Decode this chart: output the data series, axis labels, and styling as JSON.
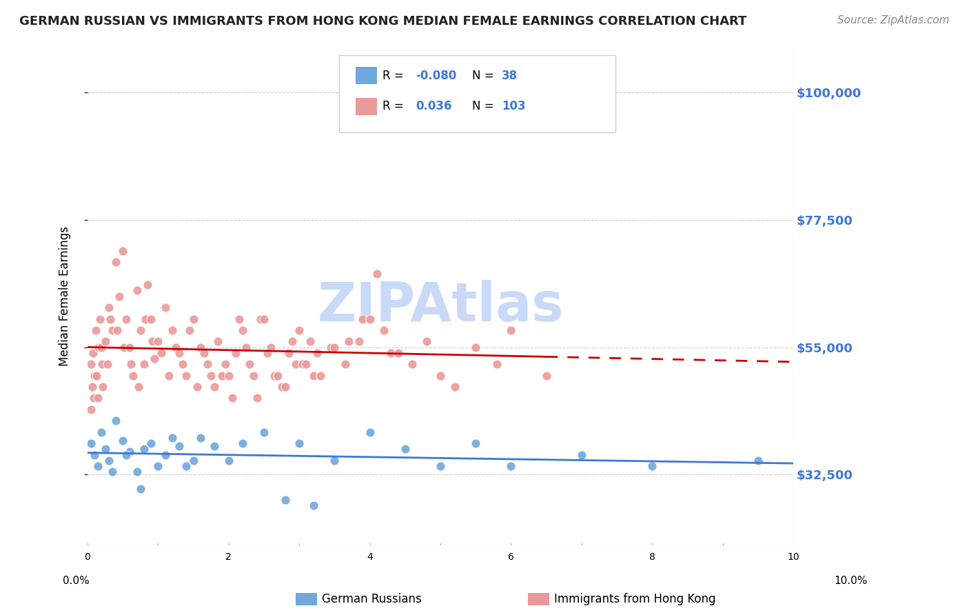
{
  "title": "GERMAN RUSSIAN VS IMMIGRANTS FROM HONG KONG MEDIAN FEMALE EARNINGS CORRELATION CHART",
  "source": "Source: ZipAtlas.com",
  "ylabel": "Median Female Earnings",
  "yticks": [
    32500,
    55000,
    77500,
    100000
  ],
  "ytick_labels": [
    "$32,500",
    "$55,000",
    "$77,500",
    "$100,000"
  ],
  "xmin": 0.0,
  "xmax": 10.0,
  "ymin": 20000,
  "ymax": 108000,
  "blue_R": -0.08,
  "blue_N": 38,
  "pink_R": 0.036,
  "pink_N": 103,
  "blue_color": "#6fa8dc",
  "pink_color": "#ea9999",
  "blue_line_color": "#3c78d8",
  "pink_line_color": "#cc0000",
  "watermark_color": "#c9daf8",
  "legend_label_blue": "German Russians",
  "legend_label_pink": "Immigrants from Hong Kong",
  "blue_scatter_x": [
    0.05,
    0.1,
    0.15,
    0.2,
    0.25,
    0.3,
    0.4,
    0.5,
    0.6,
    0.7,
    0.8,
    0.9,
    1.0,
    1.1,
    1.2,
    1.3,
    1.5,
    1.8,
    2.0,
    2.2,
    2.5,
    3.0,
    3.5,
    4.0,
    4.5,
    5.0,
    5.5,
    6.0,
    7.0,
    8.0,
    9.5,
    0.35,
    0.55,
    0.75,
    1.4,
    1.6,
    2.8,
    3.2
  ],
  "blue_scatter_y": [
    38000,
    36000,
    34000,
    40000,
    37000,
    35000,
    42000,
    38500,
    36500,
    33000,
    37000,
    38000,
    34000,
    36000,
    39000,
    37500,
    35000,
    37500,
    35000,
    38000,
    40000,
    38000,
    35000,
    40000,
    37000,
    34000,
    38000,
    34000,
    36000,
    34000,
    35000,
    33000,
    36000,
    30000,
    34000,
    39000,
    28000,
    27000
  ],
  "pink_scatter_x": [
    0.05,
    0.05,
    0.07,
    0.08,
    0.09,
    0.1,
    0.12,
    0.13,
    0.15,
    0.16,
    0.18,
    0.2,
    0.21,
    0.22,
    0.25,
    0.28,
    0.3,
    0.32,
    0.35,
    0.4,
    0.42,
    0.45,
    0.5,
    0.52,
    0.55,
    0.6,
    0.62,
    0.65,
    0.7,
    0.72,
    0.75,
    0.8,
    0.82,
    0.85,
    0.9,
    0.92,
    0.95,
    1.0,
    1.05,
    1.1,
    1.15,
    1.2,
    1.25,
    1.3,
    1.35,
    1.4,
    1.45,
    1.5,
    1.55,
    1.6,
    1.65,
    1.7,
    1.75,
    1.8,
    1.85,
    1.9,
    1.95,
    2.0,
    2.05,
    2.1,
    2.15,
    2.2,
    2.25,
    2.3,
    2.35,
    2.4,
    2.45,
    2.5,
    2.55,
    2.6,
    2.65,
    2.7,
    2.75,
    2.8,
    2.85,
    2.9,
    2.95,
    3.0,
    3.05,
    3.1,
    3.15,
    3.2,
    3.25,
    3.3,
    3.45,
    3.5,
    3.65,
    3.7,
    3.85,
    3.9,
    4.0,
    4.1,
    4.2,
    4.3,
    4.4,
    4.6,
    4.8,
    5.0,
    5.2,
    5.5,
    5.8,
    6.0,
    6.5
  ],
  "pink_scatter_y": [
    52000,
    44000,
    48000,
    54000,
    46000,
    50000,
    58000,
    50000,
    46000,
    55000,
    60000,
    55000,
    52000,
    48000,
    56000,
    52000,
    62000,
    60000,
    58000,
    70000,
    58000,
    64000,
    72000,
    55000,
    60000,
    55000,
    52000,
    50000,
    65000,
    48000,
    58000,
    52000,
    60000,
    66000,
    60000,
    56000,
    53000,
    56000,
    54000,
    62000,
    50000,
    58000,
    55000,
    54000,
    52000,
    50000,
    58000,
    60000,
    48000,
    55000,
    54000,
    52000,
    50000,
    48000,
    56000,
    50000,
    52000,
    50000,
    46000,
    54000,
    60000,
    58000,
    55000,
    52000,
    50000,
    46000,
    60000,
    60000,
    54000,
    55000,
    50000,
    50000,
    48000,
    48000,
    54000,
    56000,
    52000,
    58000,
    52000,
    52000,
    56000,
    50000,
    54000,
    50000,
    55000,
    55000,
    52000,
    56000,
    56000,
    60000,
    60000,
    68000,
    58000,
    54000,
    54000,
    52000,
    56000,
    50000,
    48000,
    55000,
    52000,
    58000,
    50000
  ]
}
